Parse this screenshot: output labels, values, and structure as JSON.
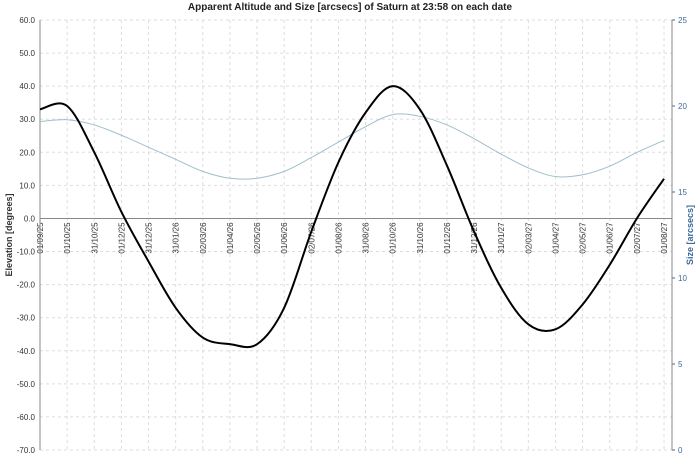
{
  "chart_data": {
    "type": "line",
    "title": "Apparent Altitude and Size [arcsecs] of Saturn at 23:58 on each date",
    "y_label": "Elevation [degrees]",
    "y2_label": "Size [arcsecs]",
    "categories": [
      "01/09/25",
      "01/10/25",
      "31/10/25",
      "01/12/25",
      "31/12/25",
      "31/01/26",
      "02/03/26",
      "01/04/26",
      "02/05/26",
      "01/06/26",
      "02/07/26",
      "01/08/26",
      "31/08/26",
      "01/10/26",
      "31/10/26",
      "01/12/26",
      "31/12/26",
      "31/01/27",
      "02/03/27",
      "01/04/27",
      "02/05/27",
      "01/06/27",
      "02/07/27",
      "01/08/27"
    ],
    "series": [
      {
        "name": "Altitude",
        "color": "#000000",
        "axis": "y",
        "values": [
          33,
          34,
          20,
          2,
          -13,
          -27,
          -36,
          -38,
          -38,
          -27,
          -4,
          17,
          32,
          40,
          33,
          16,
          -4,
          -21,
          -32,
          -33.5,
          -26,
          -14,
          0,
          12
        ]
      },
      {
        "name": "Size",
        "color": "#9fbfcc",
        "axis": "y2",
        "values": [
          19.1,
          19.2,
          18.9,
          18.3,
          17.6,
          16.9,
          16.2,
          15.8,
          15.8,
          16.2,
          17.0,
          17.9,
          18.8,
          19.5,
          19.4,
          18.9,
          18.1,
          17.2,
          16.4,
          15.9,
          16.0,
          16.5,
          17.3,
          18.0
        ]
      }
    ],
    "ylim": [
      -70,
      60
    ],
    "yticks": [
      {
        "value": 60,
        "label": "60.0"
      },
      {
        "value": 50,
        "label": "50.0"
      },
      {
        "value": 40,
        "label": "40.0"
      },
      {
        "value": 30,
        "label": "30.0"
      },
      {
        "value": 20,
        "label": "20.0"
      },
      {
        "value": 10,
        "label": "10.0"
      },
      {
        "value": 0,
        "label": "0.0"
      },
      {
        "value": -10,
        "label": "-10.0"
      },
      {
        "value": -20,
        "label": "-20.0"
      },
      {
        "value": -30,
        "label": "-30.0"
      },
      {
        "value": -40,
        "label": "-40.0"
      },
      {
        "value": -50,
        "label": "-50.0"
      },
      {
        "value": -60,
        "label": "-60.0"
      },
      {
        "value": -70,
        "label": "-70.0"
      }
    ],
    "y2lim": [
      0,
      25
    ],
    "y2ticks": [
      0,
      5,
      10,
      15,
      20,
      25
    ],
    "grid": true
  }
}
